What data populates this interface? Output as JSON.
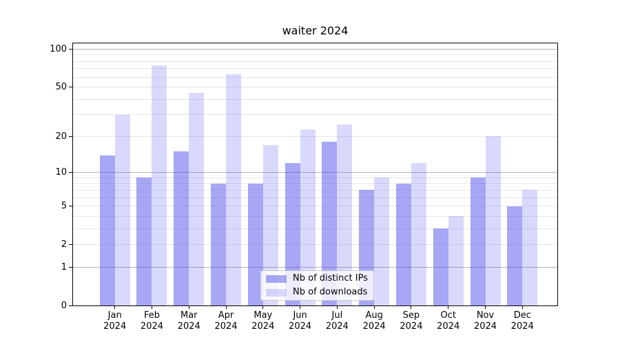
{
  "chart_data": {
    "type": "bar",
    "title": "waiter 2024",
    "categories": [
      "Jan",
      "Feb",
      "Mar",
      "Apr",
      "May",
      "Jun",
      "Jul",
      "Aug",
      "Sep",
      "Oct",
      "Nov",
      "Dec"
    ],
    "year_label": "2024",
    "series": [
      {
        "name": "Nb of distinct IPs",
        "color": "rgba(80,80,235,0.5)",
        "values": [
          14,
          9,
          15,
          8,
          8,
          12,
          18,
          7,
          8,
          3,
          9,
          5
        ]
      },
      {
        "name": "Nb of downloads",
        "color": "rgba(80,80,235,0.22)",
        "values": [
          30,
          74,
          45,
          63,
          17,
          23,
          25,
          9,
          12,
          4,
          20,
          7
        ]
      }
    ],
    "xlabel": "",
    "ylabel": "",
    "y_scale": "log1p",
    "ylim": [
      0,
      113
    ],
    "y_ticks": [
      0,
      1,
      2,
      5,
      10,
      20,
      50,
      100
    ],
    "grid": {
      "on": true,
      "major": [
        1,
        10,
        100
      ],
      "minor": [
        2,
        3,
        4,
        5,
        6,
        7,
        8,
        9,
        20,
        30,
        40,
        50,
        60,
        70,
        80,
        90
      ],
      "major_color": "#b3b3b3",
      "minor_color": "#e7e7e7"
    },
    "legend_position": "lower-center-inside",
    "colors": {
      "distinct_ips_bar": "rgba(80,80,235,0.5)",
      "downloads_bar": "rgba(80,80,235,0.22)",
      "spine": "#000000",
      "text": "#000000"
    }
  }
}
